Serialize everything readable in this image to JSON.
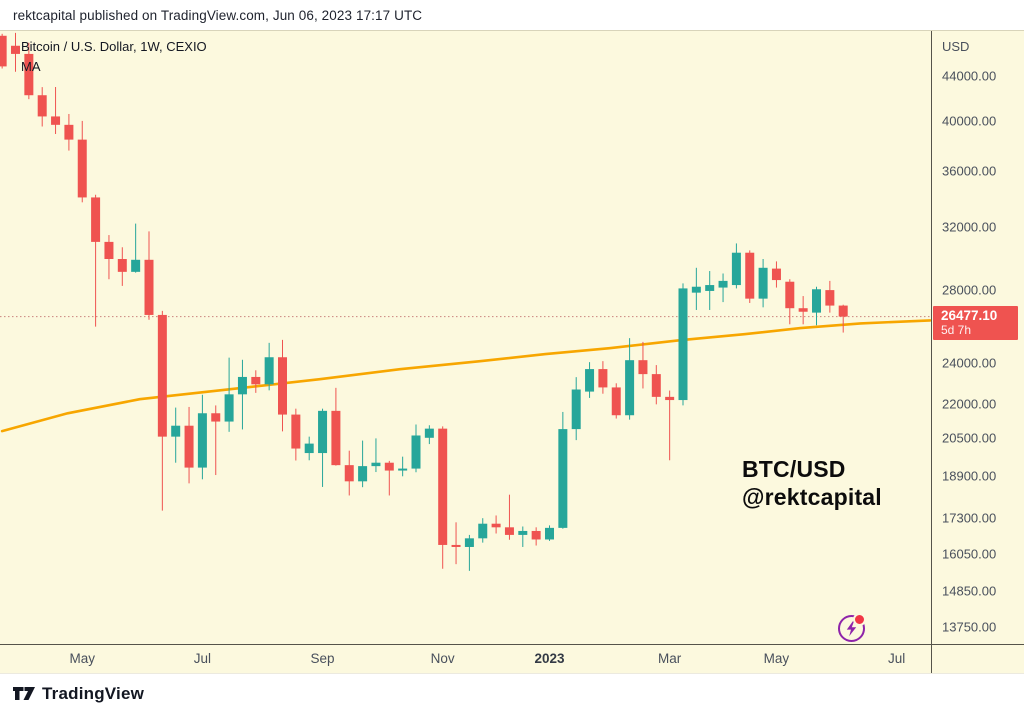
{
  "page": {
    "published_line": "rektcapital published on TradingView.com, Jun 06, 2023 17:17 UTC"
  },
  "chart": {
    "legend": {
      "title": "Bitcoin / U.S. Dollar, 1W, CEXIO",
      "indicator": "MA"
    },
    "annotation": {
      "line1": "BTC/USD",
      "line2": "@rektcapital"
    },
    "colors": {
      "background": "#fcf9de",
      "candle_up": "#26a69a",
      "candle_down": "#ef5350",
      "ma_line": "#F7A600",
      "price_badge": "#ef5350",
      "last_price_line": "#c9837d",
      "axis_text": "#49505c"
    }
  },
  "chart_data": {
    "type": "candlestick",
    "title": "Bitcoin / U.S. Dollar",
    "timeframe": "1W",
    "exchange": "CEXIO",
    "y_axis": {
      "unit": "USD",
      "scale": "log",
      "ticks": [
        44000,
        40000,
        36000,
        32000,
        28000,
        24000,
        22000,
        20500,
        18900,
        17300,
        16050,
        14850,
        13750
      ]
    },
    "x_axis": {
      "labels": [
        {
          "text": "May",
          "week": 6,
          "bold": false
        },
        {
          "text": "Jul",
          "week": 15,
          "bold": false
        },
        {
          "text": "Sep",
          "week": 24,
          "bold": false
        },
        {
          "text": "Nov",
          "week": 33,
          "bold": false
        },
        {
          "text": "2023",
          "week": 41,
          "bold": true
        },
        {
          "text": "Mar",
          "week": 50,
          "bold": false
        },
        {
          "text": "May",
          "week": 58,
          "bold": false
        },
        {
          "text": "Jul",
          "week": 67,
          "bold": false
        }
      ]
    },
    "candles_columns": [
      "week_of",
      "open",
      "high",
      "low",
      "close"
    ],
    "candles": [
      [
        "2022-03-21",
        47900,
        48100,
        44700,
        44900
      ],
      [
        "2022-03-28",
        46900,
        48190,
        44400,
        46100
      ],
      [
        "2022-04-04",
        46100,
        47200,
        41900,
        42250
      ],
      [
        "2022-04-11",
        42250,
        42980,
        39550,
        40400
      ],
      [
        "2022-04-18",
        40400,
        42990,
        38930,
        39690
      ],
      [
        "2022-04-25",
        39690,
        40610,
        37590,
        38470
      ],
      [
        "2022-05-02",
        38470,
        40020,
        33700,
        34050
      ],
      [
        "2022-05-09",
        34050,
        34240,
        25920,
        31000
      ],
      [
        "2022-05-16",
        31000,
        31450,
        28650,
        29900
      ],
      [
        "2022-05-23",
        29900,
        30650,
        28250,
        29100
      ],
      [
        "2022-05-30",
        29100,
        32220,
        29050,
        29850
      ],
      [
        "2022-06-06",
        29850,
        31700,
        26300,
        26570
      ],
      [
        "2022-06-13",
        26570,
        26800,
        17580,
        20550
      ],
      [
        "2022-06-20",
        20550,
        21850,
        19450,
        21030
      ],
      [
        "2022-06-27",
        21030,
        21880,
        18620,
        19250
      ],
      [
        "2022-07-04",
        19250,
        22450,
        18780,
        21590
      ],
      [
        "2022-07-11",
        21590,
        21950,
        18950,
        21215
      ],
      [
        "2022-07-18",
        21215,
        24280,
        20760,
        22470
      ],
      [
        "2022-07-25",
        22470,
        24170,
        20865,
        23310
      ],
      [
        "2022-08-01",
        23310,
        23640,
        22540,
        22950
      ],
      [
        "2022-08-08",
        22950,
        25050,
        22660,
        24300
      ],
      [
        "2022-08-15",
        24300,
        25210,
        20780,
        21530
      ],
      [
        "2022-08-22",
        21530,
        21800,
        19540,
        20040
      ],
      [
        "2022-08-29",
        19850,
        20550,
        19550,
        20250
      ],
      [
        "2022-09-05",
        19850,
        21800,
        18480,
        21700
      ],
      [
        "2022-09-12",
        21700,
        22780,
        19330,
        19350
      ],
      [
        "2022-09-19",
        19350,
        19950,
        18150,
        18700
      ],
      [
        "2022-09-26",
        18700,
        20380,
        18470,
        19310
      ],
      [
        "2022-10-03",
        19310,
        20475,
        19070,
        19450
      ],
      [
        "2022-10-10",
        19450,
        19525,
        18150,
        19130
      ],
      [
        "2022-10-17",
        19130,
        19700,
        18900,
        19210
      ],
      [
        "2022-10-24",
        19210,
        21085,
        19060,
        20600
      ],
      [
        "2022-10-31",
        20500,
        21050,
        20230,
        20900
      ],
      [
        "2022-11-07",
        20900,
        21000,
        15550,
        16350
      ],
      [
        "2022-11-14",
        16350,
        17150,
        15700,
        16280
      ],
      [
        "2022-11-21",
        16280,
        16700,
        15480,
        16580
      ],
      [
        "2022-11-28",
        16580,
        17300,
        16430,
        17100
      ],
      [
        "2022-12-05",
        17100,
        17400,
        16750,
        16970
      ],
      [
        "2022-12-12",
        16970,
        18180,
        16530,
        16700
      ],
      [
        "2022-12-19",
        16700,
        17000,
        16280,
        16840
      ],
      [
        "2022-12-26",
        16840,
        16970,
        16330,
        16540
      ],
      [
        "2023-01-02",
        16540,
        17040,
        16490,
        16950
      ],
      [
        "2023-01-09",
        16950,
        21650,
        16920,
        20880
      ],
      [
        "2023-01-16",
        20880,
        23300,
        20400,
        22700
      ],
      [
        "2023-01-23",
        22600,
        24050,
        22300,
        23700
      ],
      [
        "2023-01-30",
        23700,
        24100,
        22500,
        22800
      ],
      [
        "2023-02-06",
        22800,
        23000,
        21350,
        21500
      ],
      [
        "2023-02-13",
        21500,
        25300,
        21300,
        24150
      ],
      [
        "2023-02-20",
        24150,
        25100,
        22750,
        23450
      ],
      [
        "2023-02-27",
        23450,
        23900,
        22000,
        22350
      ],
      [
        "2023-03-06",
        22350,
        22650,
        19550,
        22200
      ],
      [
        "2023-03-13",
        22200,
        28400,
        21950,
        28100
      ],
      [
        "2023-03-20",
        27850,
        29350,
        26850,
        28200
      ],
      [
        "2023-03-27",
        27950,
        29150,
        26850,
        28300
      ],
      [
        "2023-04-03",
        28150,
        29000,
        27300,
        28550
      ],
      [
        "2023-04-10",
        28300,
        30900,
        28100,
        30300
      ],
      [
        "2023-04-17",
        30300,
        30450,
        27250,
        27500
      ],
      [
        "2023-04-24",
        27500,
        29900,
        27000,
        29350
      ],
      [
        "2023-05-01",
        29300,
        29750,
        28150,
        28600
      ],
      [
        "2023-05-08",
        28500,
        28650,
        26050,
        26950
      ],
      [
        "2023-05-15",
        26950,
        27650,
        26050,
        26750
      ],
      [
        "2023-05-22",
        26700,
        28200,
        26000,
        28050
      ],
      [
        "2023-05-29",
        28000,
        28550,
        26700,
        27100
      ],
      [
        "2023-06-05",
        27100,
        27150,
        25600,
        26477.1
      ]
    ],
    "ma_line": {
      "label": "MA",
      "color": "#F7A600",
      "points": [
        [
          0,
          20790
        ],
        [
          4.9,
          21590
        ],
        [
          10.3,
          22240
        ],
        [
          17.1,
          22715
        ],
        [
          23.8,
          23200
        ],
        [
          29.8,
          23694
        ],
        [
          35.8,
          24100
        ],
        [
          40.7,
          24460
        ],
        [
          45.5,
          24770
        ],
        [
          50.8,
          25190
        ],
        [
          55.6,
          25510
        ],
        [
          59.8,
          25840
        ],
        [
          64.3,
          26100
        ],
        [
          69.5,
          26265
        ]
      ]
    },
    "last_price": {
      "value": 26477.1,
      "label": "26477.10",
      "countdown": "5d 7h",
      "direction": "down"
    }
  },
  "footer": {
    "brand": "TradingView"
  }
}
